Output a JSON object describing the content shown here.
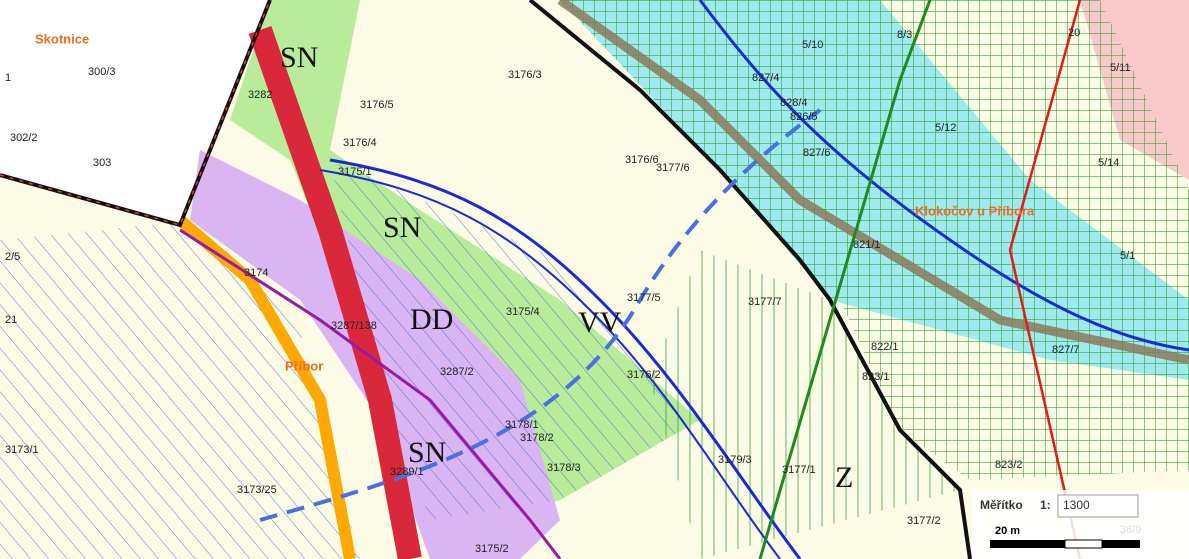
{
  "places": [
    "Skotnice",
    "Klokočov u Příbora",
    "Příbor"
  ],
  "zones": [
    "SN",
    "SN",
    "DD",
    "VV",
    "SN",
    "Z"
  ],
  "parcels": [
    "300/3",
    "302/2",
    "303",
    "1",
    "2/5",
    "21",
    "3173/1",
    "3282",
    "3176/5",
    "3176/3",
    "3176/4",
    "3176/6",
    "3177/6",
    "827/4",
    "5/10",
    "8/3",
    "20",
    "5/11",
    "828/4",
    "826/5",
    "5/12",
    "827/6",
    "5/14",
    "821/1",
    "5/1",
    "3175/4",
    "3174",
    "3287/138",
    "3287/2",
    "3177/5",
    "3177/7",
    "822/1",
    "827/7",
    "823/1",
    "3176/2",
    "3178/1",
    "3178/2",
    "3178/3",
    "3179/3",
    "3177/1",
    "823/2",
    "3289/1",
    "3173/25",
    "3175/2",
    "3177/2",
    "3175/1",
    "36/9"
  ],
  "scale": {
    "label": "Měřítko",
    "ratio": "1:",
    "value": "1300",
    "bar": "20 m"
  }
}
